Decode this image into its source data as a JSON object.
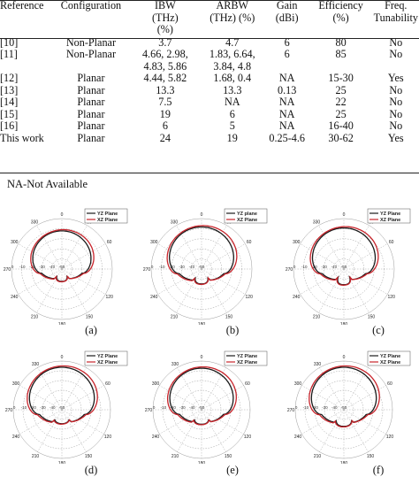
{
  "table": {
    "headers": [
      [
        "Reference"
      ],
      [
        "Configuration"
      ],
      [
        "IBW",
        "(THz)",
        "(%)"
      ],
      [
        "ARBW",
        "(THz) (%)"
      ],
      [
        "Gain",
        "(dBi)"
      ],
      [
        "Efficiency",
        "(%)"
      ],
      [
        "Freq.",
        "Tunability"
      ]
    ],
    "rows": [
      {
        "ref": "[10]",
        "config": "Non-Planar",
        "ibw": [
          "3.7"
        ],
        "arbw": [
          "4.7"
        ],
        "gain": "6",
        "eff": "80",
        "tun": "No"
      },
      {
        "ref": "[11]",
        "config": "Non-Planar",
        "ibw": [
          "4.66, 2.98,",
          "4.83, 5.86"
        ],
        "arbw": [
          "1.83, 6.64,",
          "3.84, 4.8"
        ],
        "gain": "6",
        "eff": "85",
        "tun": "No"
      },
      {
        "ref": "[12]",
        "config": "Planar",
        "ibw": [
          "4.44, 5.82"
        ],
        "arbw": [
          "1.68, 0.4"
        ],
        "gain": "NA",
        "eff": "15-30",
        "tun": "Yes"
      },
      {
        "ref": "[13]",
        "config": "Planar",
        "ibw": [
          "13.3"
        ],
        "arbw": [
          "13.3"
        ],
        "gain": "0.13",
        "eff": "25",
        "tun": "No"
      },
      {
        "ref": "[14]",
        "config": "Planar",
        "ibw": [
          "7.5"
        ],
        "arbw": [
          "NA"
        ],
        "gain": "NA",
        "eff": "22",
        "tun": "No"
      },
      {
        "ref": "[15]",
        "config": "Planar",
        "ibw": [
          "19"
        ],
        "arbw": [
          "6"
        ],
        "gain": "NA",
        "eff": "25",
        "tun": "No"
      },
      {
        "ref": "[16]",
        "config": "Planar",
        "ibw": [
          "6"
        ],
        "arbw": [
          "5"
        ],
        "gain": "NA",
        "eff": "16-40",
        "tun": "No"
      },
      {
        "ref": "This work",
        "config": "Planar",
        "ibw": [
          "24"
        ],
        "arbw": [
          "19"
        ],
        "gain": "0.25-4.6",
        "eff": "30-62",
        "tun": "Yes"
      }
    ]
  },
  "footnote": "NA-Not Available",
  "figure": {
    "series_colors": {
      "yz": "#1a1a1a",
      "xz": "#c8242b"
    },
    "angle_labels": [
      "0",
      "30",
      "60",
      "90",
      "120",
      "150",
      "180",
      "210",
      "240",
      "270",
      "300",
      "330"
    ],
    "radial_labels": [
      "0",
      "-10",
      "-20",
      "-30",
      "-40",
      "-50"
    ],
    "panels": [
      {
        "caption": "(a)",
        "legend": [
          "YZ Plane",
          "XZ Plane"
        ]
      },
      {
        "caption": "(b)",
        "legend": [
          "YZ plane",
          "XZ Plane"
        ]
      },
      {
        "caption": "(c)",
        "legend": [
          "YZ Plane",
          "XZ Plane"
        ]
      },
      {
        "caption": "(d)",
        "legend": [
          "YZ Plane",
          "XZ Plane"
        ]
      },
      {
        "caption": "(e)",
        "legend": [
          "YZ Plane",
          "XZ Plane"
        ]
      },
      {
        "caption": "(f)",
        "legend": [
          "YZ Plane",
          "XZ Plane"
        ]
      }
    ]
  }
}
